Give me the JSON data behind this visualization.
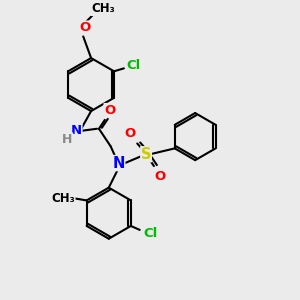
{
  "bg_color": "#ebebeb",
  "bond_color": "#000000",
  "atom_colors": {
    "N": "#0000ff",
    "O": "#ff0000",
    "S": "#cccc00",
    "Cl": "#00bb00",
    "H": "#888888",
    "C": "#000000"
  },
  "font_size": 9.5,
  "line_width": 1.5,
  "double_sep": 2.5
}
